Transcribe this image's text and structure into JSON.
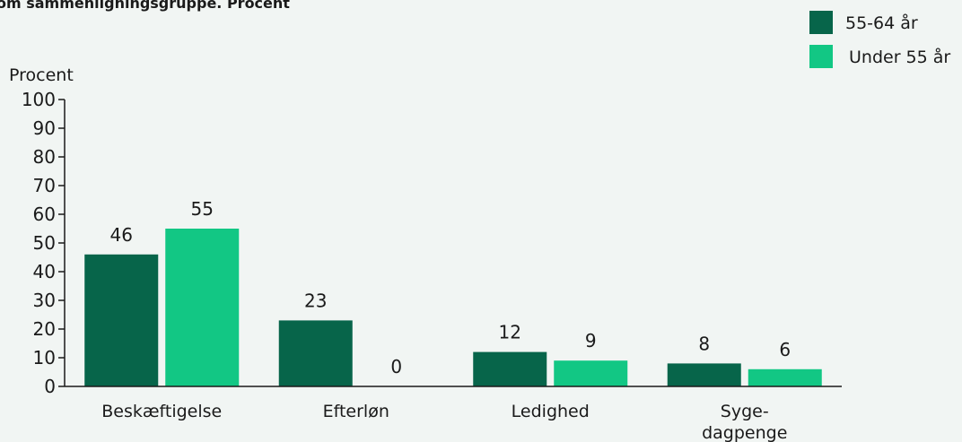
{
  "chart_data": {
    "type": "bar",
    "title": "om sammenligningsgruppe. Procent",
    "ylabel": "Procent",
    "xlabel": "",
    "ylim": [
      0,
      100
    ],
    "yticks": [
      0,
      10,
      20,
      30,
      40,
      50,
      60,
      70,
      80,
      90,
      100
    ],
    "categories": [
      [
        "Beskæftigelse"
      ],
      [
        "Efterløn"
      ],
      [
        "Ledighed"
      ],
      [
        "Syge-",
        "dagpenge"
      ]
    ],
    "series": [
      {
        "name": "55-64 år",
        "color": "#07654a",
        "values": [
          46,
          23,
          12,
          8
        ]
      },
      {
        "name": "Under 55 år",
        "color": "#12c784",
        "values": [
          55,
          0,
          9,
          6
        ]
      }
    ],
    "legend_placement": "top-right",
    "grid": false
  }
}
